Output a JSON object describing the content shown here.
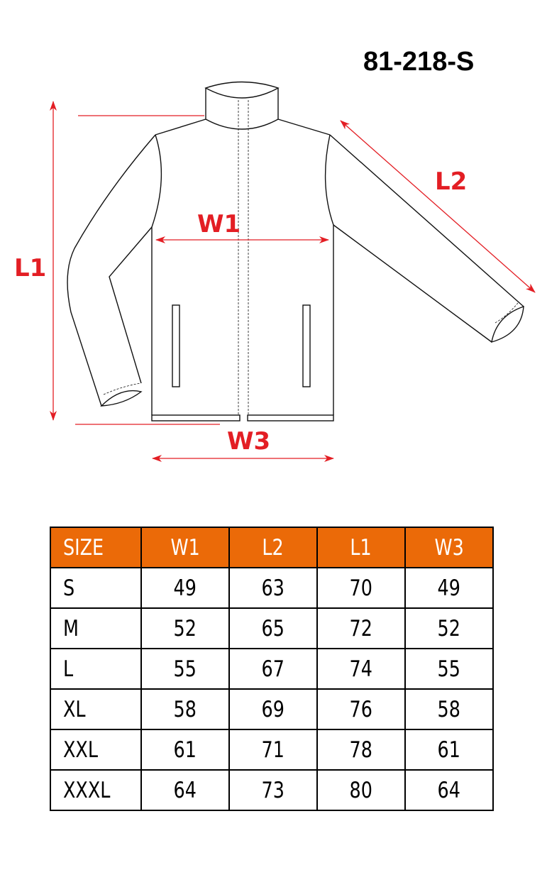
{
  "product_code": "81-218-S",
  "diagram": {
    "labels": {
      "L1": "L1",
      "W1": "W1",
      "L2": "L2",
      "W3": "W3"
    },
    "accent_color": "#e31e24",
    "header_color": "#eb6a08"
  },
  "table": {
    "headers": [
      "SIZE",
      "W1",
      "L2",
      "L1",
      "W3"
    ],
    "rows": [
      [
        "S",
        "49",
        "63",
        "70",
        "49"
      ],
      [
        "M",
        "52",
        "65",
        "72",
        "52"
      ],
      [
        "L",
        "55",
        "67",
        "74",
        "55"
      ],
      [
        "XL",
        "58",
        "69",
        "76",
        "58"
      ],
      [
        "XXL",
        "61",
        "71",
        "78",
        "61"
      ],
      [
        "XXXL",
        "64",
        "73",
        "80",
        "64"
      ]
    ]
  }
}
